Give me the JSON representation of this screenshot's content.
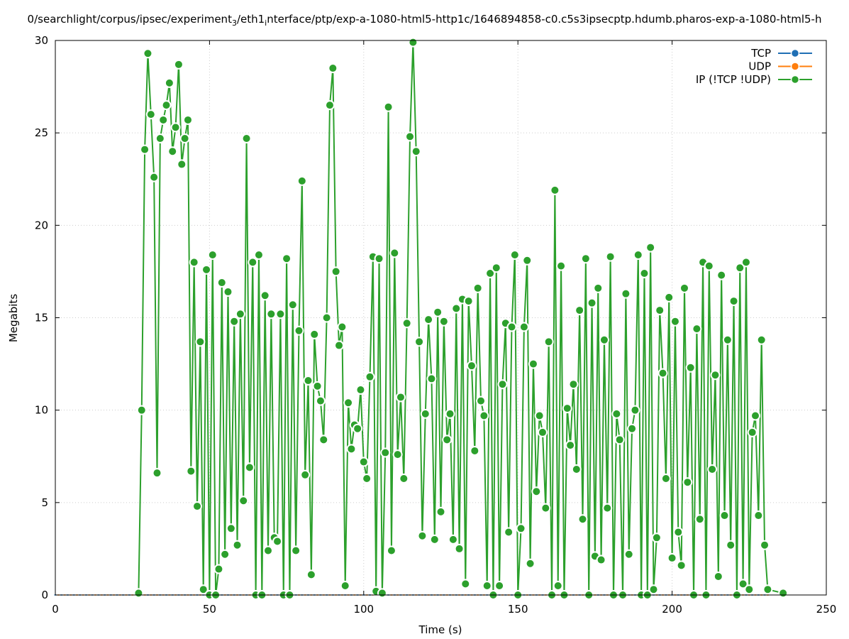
{
  "chart_data": {
    "type": "line",
    "title_parts": [
      "0/searchlight/corpus/ipsec/experiment",
      "3",
      "/eth1",
      "i",
      "nterface/ptp/exp-a-1080-html5-http1c/1646894858-c0.c5s3ipsecptp.hdumb.pharos-exp-a-1080-html5-h"
    ],
    "xlabel": "Time (s)",
    "ylabel": "Megabits",
    "xlim": [
      0,
      250
    ],
    "ylim": [
      0,
      30
    ],
    "xticks": [
      "0",
      "50",
      "100",
      "150",
      "200",
      "250"
    ],
    "yticks": [
      "0",
      "5",
      "10",
      "15",
      "20",
      "25",
      "30"
    ],
    "grid": true,
    "legend_position": "top-right",
    "series": [
      {
        "name": "TCP",
        "color": "#1f6fb4",
        "zero_from": 0,
        "zero_to": 230,
        "step": 2,
        "value": 0
      },
      {
        "name": "UDP",
        "color": "#ff7f0e",
        "zero_from": 1,
        "zero_to": 231,
        "step": 2,
        "value": 0
      },
      {
        "name": "IP (!TCP  !UDP)",
        "color": "#2ca02c",
        "x": [
          27,
          28,
          29,
          30,
          31,
          32,
          33,
          34,
          35,
          36,
          37,
          38,
          39,
          40,
          41,
          42,
          43,
          44,
          45,
          46,
          47,
          48,
          49,
          50,
          51,
          52,
          53,
          54,
          55,
          56,
          57,
          58,
          59,
          60,
          61,
          62,
          63,
          64,
          65,
          66,
          67,
          68,
          69,
          70,
          71,
          72,
          73,
          74,
          75,
          76,
          77,
          78,
          79,
          80,
          81,
          82,
          83,
          84,
          85,
          86,
          87,
          88,
          89,
          90,
          91,
          92,
          93,
          94,
          95,
          96,
          97,
          98,
          99,
          100,
          101,
          102,
          103,
          104,
          105,
          106,
          107,
          108,
          109,
          110,
          111,
          112,
          113,
          114,
          115,
          116,
          117,
          118,
          119,
          120,
          121,
          122,
          123,
          124,
          125,
          126,
          127,
          128,
          129,
          130,
          131,
          132,
          133,
          134,
          135,
          136,
          137,
          138,
          139,
          140,
          141,
          142,
          143,
          144,
          145,
          146,
          147,
          148,
          149,
          150,
          151,
          152,
          153,
          154,
          155,
          156,
          157,
          158,
          159,
          160,
          161,
          162,
          163,
          164,
          165,
          166,
          167,
          168,
          169,
          170,
          171,
          172,
          173,
          174,
          175,
          176,
          177,
          178,
          179,
          180,
          181,
          182,
          183,
          184,
          185,
          186,
          187,
          188,
          189,
          190,
          191,
          192,
          193,
          194,
          195,
          196,
          197,
          198,
          199,
          200,
          201,
          202,
          203,
          204,
          205,
          206,
          207,
          208,
          209,
          210,
          211,
          212,
          213,
          214,
          215,
          216,
          217,
          218,
          219,
          220,
          221,
          222,
          223,
          224,
          225,
          226,
          227,
          228,
          229,
          230,
          231,
          236
        ],
        "y": [
          0.1,
          10,
          24.1,
          29.3,
          26,
          22.6,
          6.6,
          24.7,
          25.7,
          26.5,
          27.7,
          24,
          25.3,
          28.7,
          23.3,
          24.7,
          25.7,
          6.7,
          18,
          4.8,
          13.7,
          0.3,
          17.6,
          0,
          18.4,
          0,
          1.4,
          16.9,
          2.2,
          16.4,
          3.6,
          14.8,
          2.7,
          15.2,
          5.1,
          24.7,
          6.9,
          18,
          0,
          18.4,
          0,
          16.2,
          2.4,
          15.2,
          3.1,
          2.9,
          15.2,
          0,
          18.2,
          0,
          15.7,
          2.4,
          14.3,
          22.4,
          6.5,
          11.6,
          1.1,
          14.1,
          11.3,
          10.5,
          8.4,
          15,
          26.5,
          28.5,
          17.5,
          13.5,
          14.5,
          0.5,
          10.4,
          7.9,
          9.2,
          9,
          11.1,
          7.2,
          6.3,
          11.8,
          18.3,
          0.2,
          18.2,
          0.1,
          7.7,
          26.4,
          2.4,
          18.5,
          7.6,
          10.7,
          6.3,
          14.7,
          24.8,
          29.9,
          24,
          13.7,
          3.2,
          9.8,
          14.9,
          11.7,
          3,
          15.3,
          4.5,
          14.8,
          8.4,
          9.8,
          3,
          15.5,
          2.5,
          16,
          0.6,
          15.9,
          12.4,
          7.8,
          16.6,
          10.5,
          9.7,
          0.5,
          17.4,
          0,
          17.7,
          0.5,
          11.4,
          14.7,
          3.4,
          14.5,
          18.4,
          0,
          3.6,
          14.5,
          18.1,
          1.7,
          12.5,
          5.6,
          9.7,
          8.8,
          4.7,
          13.7,
          0,
          21.9,
          0.5,
          17.8,
          0,
          10.1,
          8.1,
          11.4,
          6.8,
          15.4,
          4.1,
          18.2,
          0,
          15.8,
          2.1,
          16.6,
          1.9,
          13.8,
          4.7,
          18.3,
          0,
          9.8,
          8.4,
          0,
          16.3,
          2.2,
          9,
          10,
          18.4,
          0,
          17.4,
          0,
          18.8,
          0.3,
          3.1,
          15.4,
          12,
          6.3,
          16.1,
          2,
          14.8,
          3.4,
          1.6,
          16.6,
          6.1,
          12.3,
          0,
          14.4,
          4.1,
          18,
          0,
          17.8,
          6.8,
          11.9,
          1,
          17.3,
          4.3,
          13.8,
          2.7,
          15.9,
          0,
          17.7,
          0.6,
          18,
          0.3,
          8.8,
          9.7,
          4.3,
          13.8,
          2.7,
          0.3,
          0.1
        ]
      }
    ]
  }
}
